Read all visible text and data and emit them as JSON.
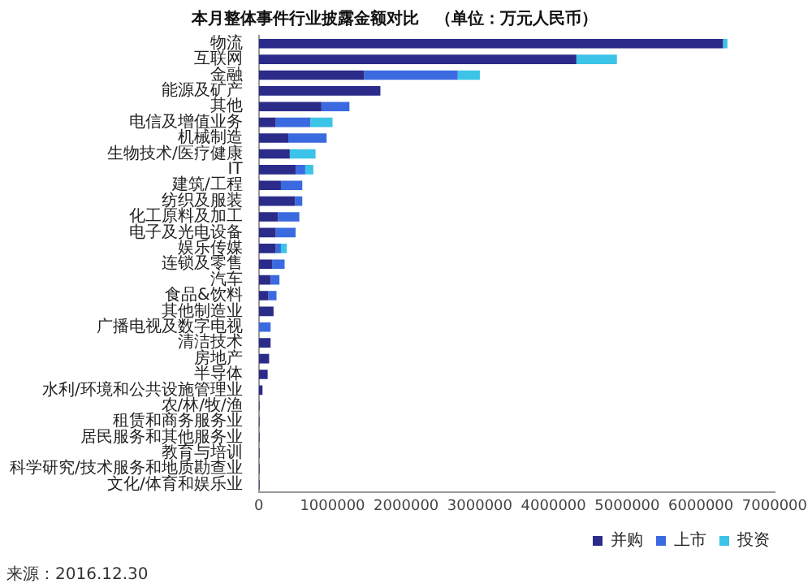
{
  "chart_data": {
    "type": "bar",
    "orientation": "horizontal",
    "stacked": true,
    "title": "本月整体事件行业披露金额对比　（单位：万元人民币）",
    "categories": [
      "物流",
      "互联网",
      "金融",
      "能源及矿产",
      "其他",
      "电信及增值业务",
      "机械制造",
      "生物技术/医疗健康",
      "IT",
      "建筑/工程",
      "纺织及服装",
      "化工原料及加工",
      "电子及光电设备",
      "娱乐传媒",
      "连锁及零售",
      "汽车",
      "食品&饮料",
      "其他制造业",
      "广播电视及数字电视",
      "清洁技术",
      "房地产",
      "半导体",
      "水利/环境和公共设施管理业",
      "农/林/牧/渔",
      "租赁和商务服务业",
      "居民服务和其他服务业",
      "教育与培训",
      "科学研究/技术服务和地质勘查业",
      "文化/体育和娱乐业"
    ],
    "series": [
      {
        "name": "并购",
        "color": "#2b2b8a",
        "values": [
          6300000,
          4310000,
          1430000,
          1650000,
          850000,
          230000,
          400000,
          420000,
          500000,
          300000,
          490000,
          260000,
          230000,
          230000,
          180000,
          160000,
          130000,
          200000,
          0,
          160000,
          140000,
          120000,
          50000,
          10000,
          10000,
          10000,
          10000,
          10000,
          10000
        ]
      },
      {
        "name": "上市",
        "color": "#3b6ae0",
        "values": [
          0,
          0,
          1270000,
          0,
          380000,
          470000,
          520000,
          0,
          130000,
          290000,
          100000,
          290000,
          270000,
          70000,
          170000,
          120000,
          110000,
          0,
          160000,
          0,
          0,
          0,
          0,
          0,
          0,
          0,
          0,
          0,
          0
        ]
      },
      {
        "name": "投资",
        "color": "#3cc3e8",
        "values": [
          60000,
          550000,
          300000,
          0,
          0,
          300000,
          0,
          350000,
          110000,
          0,
          0,
          0,
          0,
          80000,
          0,
          0,
          0,
          0,
          0,
          0,
          0,
          0,
          0,
          0,
          0,
          0,
          0,
          0,
          0
        ]
      }
    ],
    "xlim": [
      0,
      7000000
    ],
    "xticks": [
      0,
      1000000,
      2000000,
      3000000,
      4000000,
      5000000,
      6000000,
      7000000
    ],
    "grid": false,
    "legend": "bottom right",
    "annotations": [
      "来源：2016.12.30"
    ]
  }
}
